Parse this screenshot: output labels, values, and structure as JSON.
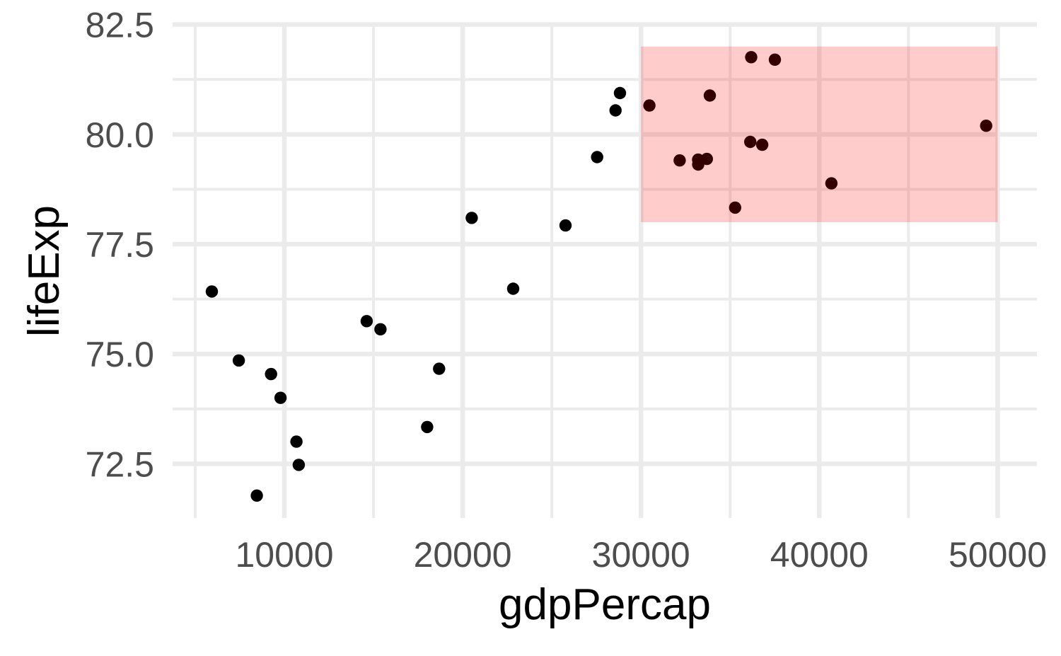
{
  "chart_data": {
    "type": "scatter",
    "title": "",
    "xlabel": "gdpPercap",
    "ylabel": "lifeExp",
    "x_ticks": [
      {
        "value": 10000,
        "label": "10000"
      },
      {
        "value": 20000,
        "label": "20000"
      },
      {
        "value": 30000,
        "label": "30000"
      },
      {
        "value": 40000,
        "label": "40000"
      },
      {
        "value": 50000,
        "label": "50000"
      }
    ],
    "y_ticks": [
      {
        "value": 72.5,
        "label": "72.5"
      },
      {
        "value": 75.0,
        "label": "75.0"
      },
      {
        "value": 77.5,
        "label": "77.5"
      },
      {
        "value": 80.0,
        "label": "80.0"
      },
      {
        "value": 82.5,
        "label": "82.5"
      }
    ],
    "x_minor_gridlines": [
      5000,
      15000,
      25000,
      35000,
      45000
    ],
    "y_minor_gridlines": [
      73.75,
      76.25,
      78.75,
      81.25
    ],
    "xlim": [
      3733.9,
      52203.2
    ],
    "ylim": [
      71.266,
      82.511
    ],
    "grid": true,
    "legend": "none",
    "points": [
      [
        5937.0,
        76.423
      ],
      [
        36126.5,
        79.829
      ],
      [
        33692.6,
        79.441
      ],
      [
        7446.3,
        74.852
      ],
      [
        10680.8,
        73.005
      ],
      [
        14619.2,
        75.748
      ],
      [
        22833.3,
        76.486
      ],
      [
        35278.4,
        78.332
      ],
      [
        33207.1,
        79.313
      ],
      [
        30470.0,
        80.657
      ],
      [
        32170.4,
        79.406
      ],
      [
        27538.4,
        79.483
      ],
      [
        18008.9,
        73.338
      ],
      [
        36180.8,
        81.757
      ],
      [
        40676.0,
        78.885
      ],
      [
        28569.7,
        80.546
      ],
      [
        9253.9,
        74.543
      ],
      [
        36797.9,
        79.762
      ],
      [
        49357.2,
        80.196
      ],
      [
        15389.9,
        75.563
      ],
      [
        20509.6,
        78.098
      ],
      [
        10808.5,
        72.476
      ],
      [
        9786.5,
        74.002
      ],
      [
        18678.3,
        74.663
      ],
      [
        25768.3,
        77.926
      ],
      [
        28821.1,
        80.941
      ],
      [
        33859.7,
        80.884
      ],
      [
        37506.4,
        81.701
      ],
      [
        8458.3,
        71.777
      ],
      [
        33203.3,
        79.425
      ]
    ],
    "annotation_rect": {
      "xmin": 30000,
      "xmax": 50000,
      "ymin": 78,
      "ymax": 82,
      "fill": "#FF0000",
      "opacity": 0.2
    },
    "colors": {
      "point": "#000000",
      "grid_major": "#EBEBEB",
      "grid_minor": "#EBEBEB",
      "tick_label": "#4D4D4D",
      "axis_title": "#000000",
      "background": "#FFFFFF"
    }
  }
}
